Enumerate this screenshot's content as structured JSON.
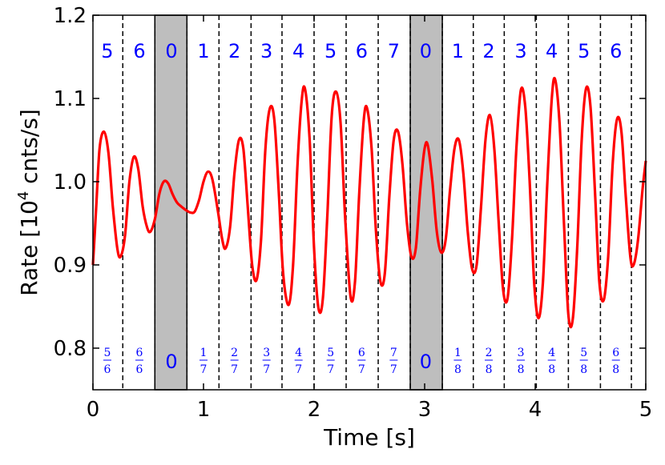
{
  "chart_data": {
    "type": "line",
    "xlabel": "Time [s]",
    "ylabel_prefix": "Rate [10",
    "ylabel_exp": "4",
    "ylabel_suffix": " cnts/s]",
    "xlim": [
      0,
      5
    ],
    "ylim": [
      0.75,
      1.2
    ],
    "xticks": [
      0,
      1,
      2,
      3,
      4,
      5
    ],
    "xtick_labels": [
      "0",
      "1",
      "2",
      "3",
      "4",
      "5"
    ],
    "yticks": [
      0.8,
      0.9,
      1.0,
      1.1,
      1.2
    ],
    "ytick_labels": [
      "0.8",
      "0.9",
      "1.0",
      "1.1",
      "1.2"
    ],
    "line_color": "#ff0000",
    "label_color": "#0000ff",
    "shade_color": "#bebebe",
    "segment_boundaries": [
      0.27,
      0.56,
      0.85,
      1.14,
      1.43,
      1.71,
      2.0,
      2.29,
      2.58,
      2.87,
      3.16,
      3.44,
      3.72,
      4.01,
      4.3,
      4.59,
      4.87
    ],
    "shaded_regions": [
      [
        0.56,
        0.85
      ],
      [
        2.87,
        3.16
      ]
    ],
    "segments": [
      {
        "x": 0.13,
        "top": "5",
        "num": "5",
        "den": "6"
      },
      {
        "x": 0.42,
        "top": "6",
        "num": "6",
        "den": "6"
      },
      {
        "x": 0.71,
        "top": "0",
        "bottom": "0"
      },
      {
        "x": 1.0,
        "top": "1",
        "num": "1",
        "den": "7"
      },
      {
        "x": 1.28,
        "top": "2",
        "num": "2",
        "den": "7"
      },
      {
        "x": 1.57,
        "top": "3",
        "num": "3",
        "den": "7"
      },
      {
        "x": 1.86,
        "top": "4",
        "num": "4",
        "den": "7"
      },
      {
        "x": 2.15,
        "top": "5",
        "num": "5",
        "den": "7"
      },
      {
        "x": 2.43,
        "top": "6",
        "num": "6",
        "den": "7"
      },
      {
        "x": 2.72,
        "top": "7",
        "num": "7",
        "den": "7"
      },
      {
        "x": 3.01,
        "top": "0",
        "bottom": "0"
      },
      {
        "x": 3.3,
        "top": "1",
        "num": "1",
        "den": "8"
      },
      {
        "x": 3.58,
        "top": "2",
        "num": "2",
        "den": "8"
      },
      {
        "x": 3.87,
        "top": "3",
        "num": "3",
        "den": "8"
      },
      {
        "x": 4.15,
        "top": "4",
        "num": "4",
        "den": "8"
      },
      {
        "x": 4.44,
        "top": "5",
        "num": "5",
        "den": "8"
      },
      {
        "x": 4.73,
        "top": "6",
        "num": "6",
        "den": "8"
      }
    ],
    "series": [
      {
        "points": [
          [
            0.0,
            0.9
          ],
          [
            0.03,
            0.97
          ],
          [
            0.06,
            1.04
          ],
          [
            0.1,
            1.06
          ],
          [
            0.14,
            1.035
          ],
          [
            0.18,
            0.97
          ],
          [
            0.22,
            0.92
          ],
          [
            0.25,
            0.91
          ],
          [
            0.29,
            0.935
          ],
          [
            0.33,
            1.0
          ],
          [
            0.37,
            1.03
          ],
          [
            0.41,
            1.015
          ],
          [
            0.45,
            0.97
          ],
          [
            0.49,
            0.945
          ],
          [
            0.52,
            0.94
          ],
          [
            0.56,
            0.955
          ],
          [
            0.6,
            0.985
          ],
          [
            0.64,
            1.0
          ],
          [
            0.68,
            0.998
          ],
          [
            0.72,
            0.985
          ],
          [
            0.76,
            0.975
          ],
          [
            0.8,
            0.97
          ],
          [
            0.84,
            0.966
          ],
          [
            0.88,
            0.963
          ],
          [
            0.92,
            0.964
          ],
          [
            0.96,
            0.978
          ],
          [
            1.0,
            1.0
          ],
          [
            1.04,
            1.012
          ],
          [
            1.08,
            1.003
          ],
          [
            1.13,
            0.965
          ],
          [
            1.17,
            0.93
          ],
          [
            1.2,
            0.92
          ],
          [
            1.24,
            0.945
          ],
          [
            1.28,
            1.01
          ],
          [
            1.32,
            1.05
          ],
          [
            1.36,
            1.04
          ],
          [
            1.4,
            0.97
          ],
          [
            1.44,
            0.9
          ],
          [
            1.48,
            0.882
          ],
          [
            1.52,
            0.93
          ],
          [
            1.56,
            1.04
          ],
          [
            1.6,
            1.088
          ],
          [
            1.64,
            1.075
          ],
          [
            1.68,
            0.99
          ],
          [
            1.72,
            0.89
          ],
          [
            1.77,
            0.852
          ],
          [
            1.81,
            0.9
          ],
          [
            1.85,
            1.02
          ],
          [
            1.89,
            1.1
          ],
          [
            1.92,
            1.11
          ],
          [
            1.96,
            1.05
          ],
          [
            2.0,
            0.92
          ],
          [
            2.04,
            0.848
          ],
          [
            2.08,
            0.86
          ],
          [
            2.12,
            0.96
          ],
          [
            2.16,
            1.08
          ],
          [
            2.2,
            1.108
          ],
          [
            2.24,
            1.07
          ],
          [
            2.28,
            0.96
          ],
          [
            2.33,
            0.862
          ],
          [
            2.37,
            0.88
          ],
          [
            2.41,
            0.99
          ],
          [
            2.45,
            1.075
          ],
          [
            2.48,
            1.088
          ],
          [
            2.52,
            1.04
          ],
          [
            2.56,
            0.94
          ],
          [
            2.6,
            0.88
          ],
          [
            2.64,
            0.89
          ],
          [
            2.68,
            0.98
          ],
          [
            2.72,
            1.05
          ],
          [
            2.76,
            1.06
          ],
          [
            2.8,
            1.02
          ],
          [
            2.84,
            0.95
          ],
          [
            2.88,
            0.91
          ],
          [
            2.92,
            0.92
          ],
          [
            2.96,
            0.99
          ],
          [
            3.0,
            1.04
          ],
          [
            3.03,
            1.043
          ],
          [
            3.07,
            1.0
          ],
          [
            3.11,
            0.94
          ],
          [
            3.15,
            0.915
          ],
          [
            3.19,
            0.93
          ],
          [
            3.23,
            0.99
          ],
          [
            3.27,
            1.04
          ],
          [
            3.31,
            1.05
          ],
          [
            3.35,
            1.01
          ],
          [
            3.39,
            0.94
          ],
          [
            3.43,
            0.895
          ],
          [
            3.47,
            0.9
          ],
          [
            3.51,
            0.97
          ],
          [
            3.55,
            1.05
          ],
          [
            3.59,
            1.08
          ],
          [
            3.63,
            1.04
          ],
          [
            3.67,
            0.95
          ],
          [
            3.71,
            0.87
          ],
          [
            3.75,
            0.86
          ],
          [
            3.79,
            0.93
          ],
          [
            3.83,
            1.04
          ],
          [
            3.87,
            1.11
          ],
          [
            3.91,
            1.09
          ],
          [
            3.95,
            1.0
          ],
          [
            3.99,
            0.88
          ],
          [
            4.03,
            0.836
          ],
          [
            4.07,
            0.88
          ],
          [
            4.11,
            1.0
          ],
          [
            4.15,
            1.1
          ],
          [
            4.18,
            1.123
          ],
          [
            4.22,
            1.07
          ],
          [
            4.26,
            0.95
          ],
          [
            4.3,
            0.84
          ],
          [
            4.34,
            0.835
          ],
          [
            4.38,
            0.92
          ],
          [
            4.42,
            1.05
          ],
          [
            4.46,
            1.112
          ],
          [
            4.5,
            1.09
          ],
          [
            4.54,
            0.99
          ],
          [
            4.58,
            0.88
          ],
          [
            4.62,
            0.858
          ],
          [
            4.66,
            0.91
          ],
          [
            4.7,
            1.02
          ],
          [
            4.74,
            1.075
          ],
          [
            4.78,
            1.06
          ],
          [
            4.82,
            0.98
          ],
          [
            4.86,
            0.91
          ],
          [
            4.89,
            0.9
          ],
          [
            4.93,
            0.93
          ],
          [
            4.97,
            0.99
          ],
          [
            5.0,
            1.025
          ]
        ]
      }
    ]
  }
}
